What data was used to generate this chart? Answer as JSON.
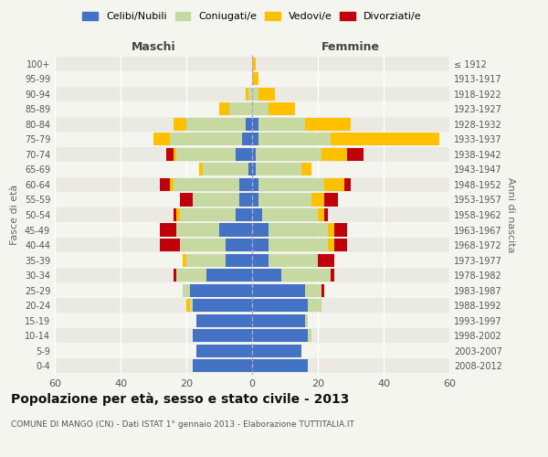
{
  "age_groups": [
    "0-4",
    "5-9",
    "10-14",
    "15-19",
    "20-24",
    "25-29",
    "30-34",
    "35-39",
    "40-44",
    "45-49",
    "50-54",
    "55-59",
    "60-64",
    "65-69",
    "70-74",
    "75-79",
    "80-84",
    "85-89",
    "90-94",
    "95-99",
    "100+"
  ],
  "birth_years": [
    "2008-2012",
    "2003-2007",
    "1998-2002",
    "1993-1997",
    "1988-1992",
    "1983-1987",
    "1978-1982",
    "1973-1977",
    "1968-1972",
    "1963-1967",
    "1958-1962",
    "1953-1957",
    "1948-1952",
    "1943-1947",
    "1938-1942",
    "1933-1937",
    "1928-1932",
    "1923-1927",
    "1918-1922",
    "1913-1917",
    "≤ 1912"
  ],
  "maschi": {
    "celibi": [
      18,
      17,
      18,
      17,
      18,
      19,
      14,
      8,
      8,
      10,
      5,
      4,
      4,
      1,
      5,
      3,
      2,
      0,
      0,
      0,
      0
    ],
    "coniugati": [
      0,
      0,
      0,
      0,
      1,
      2,
      9,
      12,
      14,
      13,
      17,
      14,
      20,
      14,
      18,
      22,
      18,
      7,
      1,
      0,
      0
    ],
    "vedovi": [
      0,
      0,
      0,
      0,
      1,
      0,
      0,
      1,
      0,
      0,
      1,
      0,
      1,
      1,
      1,
      5,
      4,
      3,
      1,
      0,
      0
    ],
    "divorziati": [
      0,
      0,
      0,
      0,
      0,
      0,
      1,
      0,
      6,
      5,
      1,
      4,
      3,
      0,
      2,
      0,
      0,
      0,
      0,
      0,
      0
    ]
  },
  "femmine": {
    "nubili": [
      17,
      15,
      17,
      16,
      17,
      16,
      9,
      5,
      5,
      5,
      3,
      2,
      2,
      1,
      1,
      2,
      2,
      0,
      0,
      0,
      0
    ],
    "coniugate": [
      0,
      0,
      1,
      1,
      4,
      5,
      15,
      15,
      18,
      18,
      17,
      16,
      20,
      14,
      20,
      22,
      14,
      5,
      2,
      0,
      0
    ],
    "vedove": [
      0,
      0,
      0,
      0,
      0,
      0,
      0,
      0,
      2,
      2,
      2,
      4,
      6,
      3,
      8,
      33,
      14,
      8,
      5,
      2,
      1
    ],
    "divorziate": [
      0,
      0,
      0,
      0,
      0,
      1,
      1,
      5,
      4,
      4,
      1,
      4,
      2,
      0,
      5,
      0,
      0,
      0,
      0,
      0,
      0
    ]
  },
  "colors": {
    "celibi": "#4472c4",
    "coniugati": "#c5d9a0",
    "vedovi": "#ffc000",
    "divorziati": "#c0000b"
  },
  "legend_labels": [
    "Celibi/Nubili",
    "Coniugati/e",
    "Vedovi/e",
    "Divorziati/e"
  ],
  "title": "Popolazione per età, sesso e stato civile - 2013",
  "subtitle": "COMUNE DI MANGO (CN) - Dati ISTAT 1° gennaio 2013 - Elaborazione TUTTITALIA.IT",
  "xlabel_left": "Maschi",
  "xlabel_right": "Femmine",
  "ylabel_left": "Fasce di età",
  "ylabel_right": "Anni di nascita",
  "xlim": 60,
  "background_color": "#f5f5f0",
  "row_alt_color": "#eaeae2",
  "grid_color": "#ffffff",
  "center_line_color": "#aaaacc"
}
